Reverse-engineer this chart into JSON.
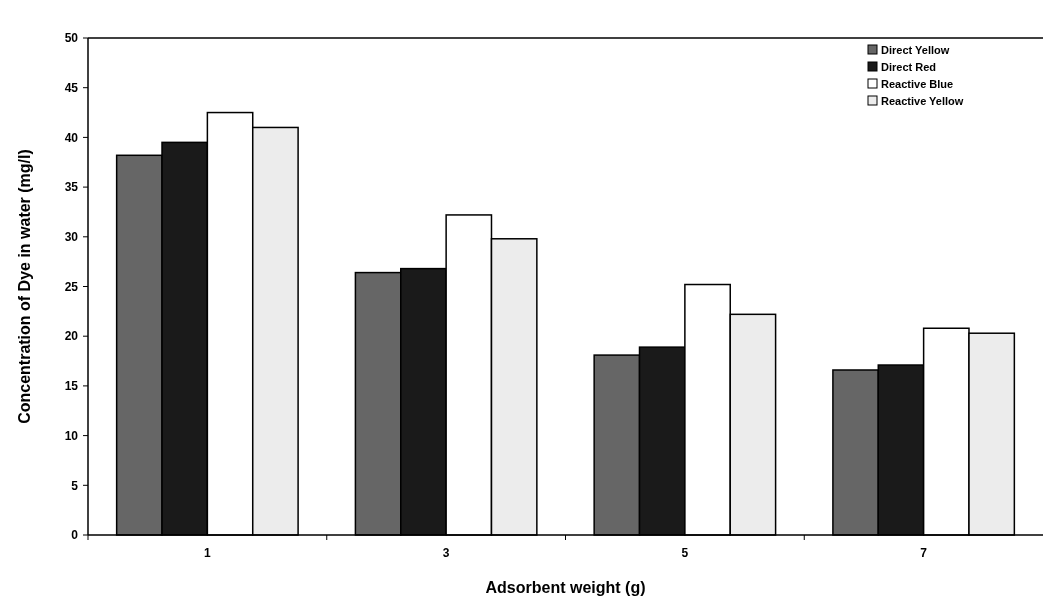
{
  "chart_data": {
    "type": "bar",
    "xlabel": "Adsorbent weight (g)",
    "ylabel": "Concentration of Dye in water (mg/l)",
    "categories": [
      "1",
      "3",
      "5",
      "7"
    ],
    "series": [
      {
        "name": "Direct Yellow",
        "color": "#666666",
        "values": [
          38.2,
          26.4,
          18.1,
          16.6
        ]
      },
      {
        "name": "Direct Red",
        "color": "#1a1a1a",
        "values": [
          39.5,
          26.8,
          18.9,
          17.1
        ]
      },
      {
        "name": "Reactive Blue",
        "color": "#ffffff",
        "values": [
          42.5,
          32.2,
          25.2,
          20.8
        ]
      },
      {
        "name": "Reactive Yellow",
        "color": "#ececec",
        "values": [
          41.0,
          29.8,
          22.2,
          20.3
        ]
      }
    ],
    "ylim": [
      0,
      50
    ],
    "yticks": [
      0,
      5,
      10,
      15,
      20,
      25,
      30,
      35,
      40,
      45,
      50
    ],
    "grid": false,
    "legend": "top right"
  }
}
